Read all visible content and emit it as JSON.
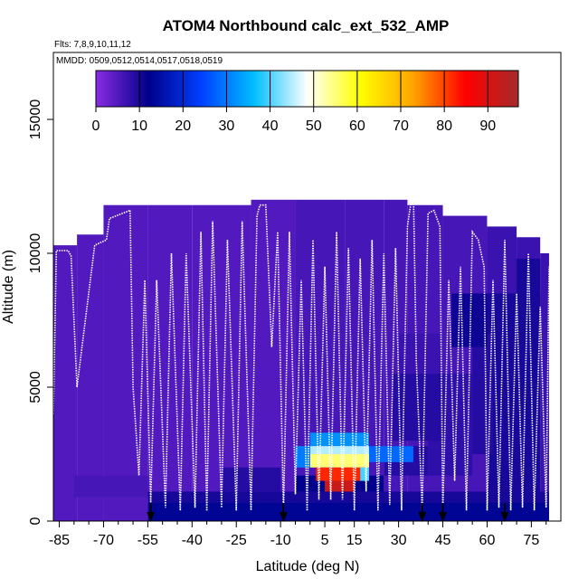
{
  "chart_data": {
    "type": "heatmap",
    "title": "ATOM4 Northbound calc_ext_532_AMP",
    "subtitle_flights": "Flts: 7,8,9,10,11,12",
    "subtitle_dates": "MMDD: 0509,0512,0514,0517,0518,0519",
    "xlabel": "Latitude (deg N)",
    "ylabel": "Altitude (m)",
    "xlim": [
      -87,
      85
    ],
    "ylim": [
      0,
      17500
    ],
    "xticks_major": [
      -85,
      -70,
      -55,
      -40,
      -25,
      -10,
      5,
      15,
      30,
      45,
      60,
      75
    ],
    "xticks_minor": [
      -80,
      -75,
      -65,
      -60,
      -50,
      -45,
      -35,
      -30,
      -20,
      -15,
      -5,
      0,
      10,
      20,
      25,
      35,
      40,
      50,
      55,
      65,
      70,
      80
    ],
    "yticks": [
      0,
      5000,
      10000,
      15000
    ],
    "colorbar": {
      "ticks": [
        0,
        10,
        20,
        30,
        40,
        50,
        60,
        70,
        80,
        90
      ],
      "range": [
        0,
        97
      ],
      "stops": [
        "#8A2BE2",
        "#00008B",
        "#0040FF",
        "#00BFFF",
        "#FFFFFF",
        "#FFFF00",
        "#FFA500",
        "#FF0000",
        "#A52A2A"
      ]
    },
    "arrows_lat": [
      -54,
      -9,
      38,
      45,
      66
    ],
    "columns": [
      {
        "x0": -87,
        "x1": -79,
        "top": 10300,
        "val": 5
      },
      {
        "x0": -79,
        "x1": -70,
        "top": 10700,
        "val": 5
      },
      {
        "x0": -70,
        "x1": -55,
        "top": 11800,
        "val": 5
      },
      {
        "x0": -55,
        "x1": -40,
        "top": 11800,
        "val": 5
      },
      {
        "x0": -40,
        "x1": -20,
        "top": 11800,
        "val": 5
      },
      {
        "x0": -20,
        "x1": -5,
        "top": 12000,
        "val": 5
      },
      {
        "x0": -5,
        "x1": 12,
        "top": 12000,
        "val": 6
      },
      {
        "x0": 12,
        "x1": 25,
        "top": 12000,
        "val": 6
      },
      {
        "x0": 25,
        "x1": 33,
        "top": 12000,
        "val": 6
      },
      {
        "x0": 33,
        "x1": 45,
        "top": 11800,
        "val": 6
      },
      {
        "x0": 45,
        "x1": 60,
        "top": 11400,
        "val": 6
      },
      {
        "x0": 60,
        "x1": 70,
        "top": 11000,
        "val": 7
      },
      {
        "x0": 70,
        "x1": 78,
        "top": 10600,
        "val": 7
      },
      {
        "x0": 78,
        "x1": 81,
        "top": 10000,
        "val": 7
      }
    ],
    "patches": [
      {
        "x0": -55,
        "x1": 81,
        "y0": 0,
        "y1": 700,
        "val": 13
      },
      {
        "x0": -55,
        "x1": 81,
        "y0": 700,
        "y1": 1100,
        "val": 10
      },
      {
        "x0": -80,
        "x1": -55,
        "y0": 900,
        "y1": 1700,
        "val": 6
      },
      {
        "x0": -5,
        "x1": 25,
        "y0": 1100,
        "y1": 1700,
        "val": 12
      },
      {
        "x0": 25,
        "x1": 40,
        "y0": 1700,
        "y1": 2800,
        "val": 9
      },
      {
        "x0": 40,
        "x1": 55,
        "y0": 1700,
        "y1": 5500,
        "val": 8
      },
      {
        "x0": 28,
        "x1": 45,
        "y0": 3000,
        "y1": 5500,
        "val": 9
      },
      {
        "x0": 30,
        "x1": 45,
        "y0": 5500,
        "y1": 7000,
        "val": 7
      },
      {
        "x0": 60,
        "x1": 78,
        "y0": 1100,
        "y1": 8500,
        "val": 10
      },
      {
        "x0": 55,
        "x1": 62,
        "y0": 2500,
        "y1": 7000,
        "val": 9
      },
      {
        "x0": 70,
        "x1": 78,
        "y0": 7500,
        "y1": 9800,
        "val": 10
      },
      {
        "x0": 48,
        "x1": 60,
        "y0": 6500,
        "y1": 8500,
        "val": 11
      },
      {
        "x0": 0,
        "x1": 20,
        "y0": 2800,
        "y1": 3300,
        "val": 32
      },
      {
        "x0": 0,
        "x1": 20,
        "y0": 2500,
        "y1": 2800,
        "val": 45
      },
      {
        "x0": 0,
        "x1": 20,
        "y0": 2000,
        "y1": 2500,
        "val": 55
      },
      {
        "x0": 2,
        "x1": 17,
        "y0": 1500,
        "y1": 2000,
        "val": 82
      },
      {
        "x0": 5,
        "x1": 15,
        "y0": 1100,
        "y1": 1500,
        "val": 92
      },
      {
        "x0": 17,
        "x1": 20,
        "y0": 1500,
        "y1": 2000,
        "val": 40
      },
      {
        "x0": -5,
        "x1": 0,
        "y0": 2000,
        "y1": 2800,
        "val": 30
      },
      {
        "x0": 20,
        "x1": 35,
        "y0": 2200,
        "y1": 2800,
        "val": 28
      },
      {
        "x0": -30,
        "x1": -10,
        "y0": 1100,
        "y1": 2000,
        "val": 9
      }
    ],
    "flight_tracks": [
      [
        [
          -87,
          4000
        ],
        [
          -86,
          10100
        ],
        [
          -82,
          10100
        ],
        [
          -81,
          9900
        ],
        [
          -79,
          5000
        ]
      ],
      [
        [
          -79,
          5000
        ],
        [
          -73,
          10300
        ],
        [
          -69,
          10500
        ],
        [
          -68,
          11300
        ],
        [
          -61,
          11600
        ]
      ],
      [
        [
          -61,
          11600
        ],
        [
          -60,
          5000
        ],
        [
          -58,
          1700
        ],
        [
          -56,
          9000
        ],
        [
          -54,
          700
        ]
      ],
      [
        [
          -54,
          700
        ],
        [
          -52,
          9000
        ],
        [
          -49,
          500
        ],
        [
          -47,
          10000
        ],
        [
          -44,
          400
        ]
      ],
      [
        [
          -44,
          400
        ],
        [
          -42,
          10000
        ],
        [
          -39,
          500
        ],
        [
          -37,
          10800
        ],
        [
          -35,
          400
        ]
      ],
      [
        [
          -35,
          400
        ],
        [
          -33,
          11200
        ],
        [
          -30,
          500
        ],
        [
          -28,
          10500
        ],
        [
          -25,
          400
        ]
      ],
      [
        [
          -25,
          400
        ],
        [
          -23,
          11200
        ],
        [
          -20,
          400
        ],
        [
          -18,
          11400
        ],
        [
          -17,
          11800
        ]
      ],
      [
        [
          -17,
          11800
        ],
        [
          -15,
          11800
        ],
        [
          -13,
          6500
        ],
        [
          -11,
          10800
        ],
        [
          -9,
          400
        ]
      ],
      [
        [
          -9,
          400
        ],
        [
          -7,
          10800
        ],
        [
          -5,
          1000
        ],
        [
          -3,
          9000
        ],
        [
          -1,
          400
        ]
      ],
      [
        [
          -1,
          400
        ],
        [
          1,
          10500
        ],
        [
          3,
          800
        ],
        [
          5,
          9500
        ],
        [
          7,
          800
        ]
      ],
      [
        [
          7,
          800
        ],
        [
          9,
          10800
        ],
        [
          11,
          800
        ],
        [
          13,
          10200
        ],
        [
          15,
          400
        ]
      ],
      [
        [
          15,
          400
        ],
        [
          17,
          9800
        ],
        [
          19,
          1100
        ],
        [
          21,
          10500
        ],
        [
          23,
          400
        ]
      ],
      [
        [
          23,
          400
        ],
        [
          25,
          10000
        ],
        [
          27,
          600
        ],
        [
          29,
          10200
        ],
        [
          31,
          400
        ]
      ],
      [
        [
          31,
          400
        ],
        [
          33,
          11000
        ],
        [
          35,
          12500
        ],
        [
          36,
          6000
        ],
        [
          38,
          400
        ]
      ],
      [
        [
          38,
          400
        ],
        [
          40,
          11500
        ],
        [
          42,
          11600
        ],
        [
          44,
          11000
        ],
        [
          45,
          400
        ]
      ],
      [
        [
          45,
          400
        ],
        [
          47,
          9000
        ],
        [
          49,
          1500
        ],
        [
          51,
          9500
        ],
        [
          53,
          400
        ]
      ],
      [
        [
          53,
          400
        ],
        [
          55,
          10800
        ],
        [
          57,
          10500
        ],
        [
          59,
          9500
        ],
        [
          60,
          400
        ]
      ],
      [
        [
          60,
          400
        ],
        [
          62,
          9000
        ],
        [
          64,
          500
        ],
        [
          66,
          10500
        ],
        [
          68,
          400
        ]
      ],
      [
        [
          68,
          400
        ],
        [
          70,
          8500
        ],
        [
          72,
          500
        ],
        [
          74,
          10000
        ],
        [
          76,
          400
        ]
      ],
      [
        [
          76,
          400
        ],
        [
          78,
          8000
        ],
        [
          80,
          500
        ],
        [
          81,
          9500
        ]
      ]
    ]
  }
}
